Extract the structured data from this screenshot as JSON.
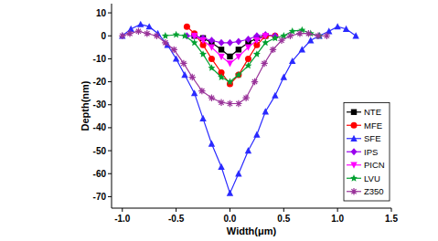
{
  "chart_data": {
    "type": "line",
    "x_label": "Width(μm)",
    "y_label": "Depth(nm)",
    "xlim": [
      -1.1,
      1.5
    ],
    "xticks": [
      {
        "value": -1,
        "label": "-1.0"
      },
      {
        "value": -0.5,
        "label": "-0.5"
      },
      {
        "value": 0,
        "label": "0.0"
      },
      {
        "value": 0.5,
        "label": "0.5"
      },
      {
        "value": 1,
        "label": "1.0"
      },
      {
        "value": 1.5,
        "label": "1.5"
      }
    ],
    "ylim": [
      -75,
      14
    ],
    "yticks": [
      10,
      0,
      -10,
      -20,
      -30,
      -40,
      -50,
      -60,
      -70
    ],
    "grid": false,
    "legend": "lower right",
    "series": [
      {
        "name": "NTE",
        "color": "#000000",
        "marker": "square",
        "x": [
          -0.33,
          -0.25,
          -0.17,
          -0.08,
          0,
          0.08,
          0.17,
          0.25,
          0.33
        ],
        "values": [
          0,
          -1,
          -3,
          -6,
          -9,
          -6,
          -3,
          -1,
          0
        ]
      },
      {
        "name": "MFE",
        "color": "#ff0000",
        "marker": "circle",
        "x": [
          -0.4,
          -0.33,
          -0.25,
          -0.17,
          -0.08,
          0,
          0.08,
          0.17,
          0.25,
          0.33,
          0.42
        ],
        "values": [
          4,
          1,
          -4,
          -10,
          -16,
          -21,
          -17,
          -10,
          -4,
          0,
          0
        ]
      },
      {
        "name": "SFE",
        "color": "#2a2aff",
        "marker": "triangle",
        "x": [
          -1.0,
          -0.92,
          -0.83,
          -0.75,
          -0.67,
          -0.58,
          -0.5,
          -0.42,
          -0.33,
          -0.25,
          -0.17,
          -0.08,
          0,
          0.08,
          0.17,
          0.25,
          0.33,
          0.42,
          0.5,
          0.58,
          0.67,
          0.75,
          0.83,
          0.92,
          1.0,
          1.08,
          1.17
        ],
        "values": [
          0,
          3,
          5,
          4,
          1,
          -4,
          -10,
          -17,
          -25,
          -36,
          -47,
          -57,
          -68.5,
          -60,
          -50,
          -43,
          -33,
          -26,
          -18,
          -11,
          -6,
          -2,
          0,
          2,
          4,
          3,
          0
        ]
      },
      {
        "name": "IPS",
        "color": "#9900ee",
        "marker": "diamond",
        "x": [
          -0.4,
          -0.33,
          -0.25,
          -0.17,
          -0.08,
          0,
          0.08,
          0.17,
          0.25,
          0.33,
          0.42
        ],
        "values": [
          0,
          0,
          -1,
          -2,
          -3,
          -3,
          -2.5,
          -1.5,
          0,
          0.5,
          0
        ]
      },
      {
        "name": "PICN",
        "color": "#ff00ff",
        "marker": "triangle-down",
        "x": [
          -0.33,
          -0.25,
          -0.17,
          -0.08,
          0,
          0.08,
          0.17,
          0.25,
          0.33
        ],
        "values": [
          0,
          -2,
          -5,
          -9,
          -12,
          -9,
          -5,
          -2,
          0
        ]
      },
      {
        "name": "LVU",
        "color": "#00a030",
        "marker": "star",
        "x": [
          -0.6,
          -0.5,
          -0.42,
          -0.33,
          -0.25,
          -0.17,
          -0.08,
          0,
          0.08,
          0.17,
          0.25,
          0.33,
          0.42,
          0.5,
          0.58,
          0.67,
          0.75,
          0.83
        ],
        "values": [
          0,
          0.5,
          0,
          -3,
          -8,
          -14,
          -18,
          -20,
          -17,
          -13,
          -8,
          -3,
          -1,
          0,
          2,
          2.5,
          1,
          0
        ]
      },
      {
        "name": "Z350",
        "color": "#993399",
        "marker": "asterisk",
        "x": [
          -1.0,
          -0.93,
          -0.85,
          -0.77,
          -0.68,
          -0.6,
          -0.52,
          -0.43,
          -0.35,
          -0.26,
          -0.17,
          -0.08,
          0,
          0.08,
          0.15,
          0.23,
          0.32,
          0.4,
          0.48,
          0.56,
          0.65,
          0.73,
          0.82,
          0.9
        ],
        "values": [
          0,
          1,
          2,
          1,
          0,
          -3,
          -6,
          -12,
          -18,
          -24,
          -27,
          -29,
          -29.5,
          -29.5,
          -27,
          -20,
          -12,
          -6,
          -2,
          0,
          1,
          1,
          0,
          0
        ]
      }
    ]
  }
}
